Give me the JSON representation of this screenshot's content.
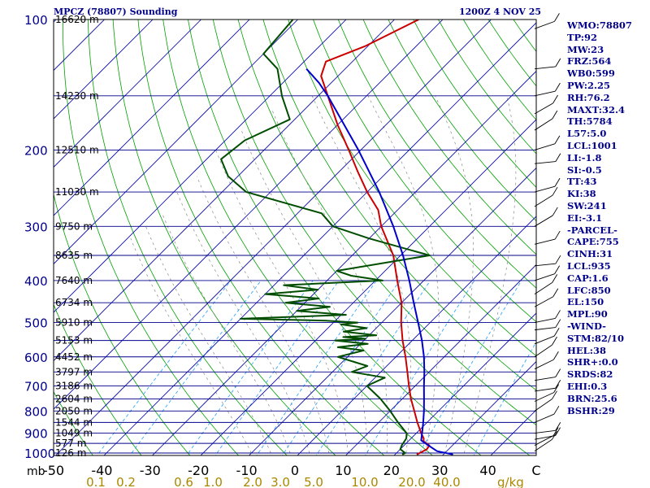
{
  "header": {
    "station": "MPCZ (78807) Sounding",
    "time": "1200Z  4 NOV 25"
  },
  "stats": [
    "WMO:78807",
    "TP:92",
    "MW:23",
    "FRZ:564",
    "WB0:599",
    "PW:2.25",
    "RH:76.2",
    "MAXT:32.4",
    "TH:5784",
    "L57:5.0",
    "LCL:1001",
    "LI:-1.8",
    "SI:-0.5",
    "TT:43",
    "KI:38",
    "SW:241",
    "EI:-3.1",
    "-PARCEL-",
    "CAPE:755",
    "CINH:31",
    "LCL:935",
    "CAP:1.6",
    "LFC:850",
    "EL:150",
    "MPL:90",
    "-WIND-",
    "STM:82/10",
    "HEL:38",
    "SHR+:0.0",
    "SRDS:82",
    "EHI:0.3",
    "BRN:25.6",
    "BSHR:29"
  ],
  "colors": {
    "background": "#ffffff",
    "isobar": "#00008b",
    "isotherm": "#0000aa",
    "dry_adiabat": "#00a000",
    "mixing_ratio": "#20a0ff",
    "temperature": "#cc0000",
    "dewpoint": "#004d00",
    "parcel": "#0000cc",
    "title_text": "#00008b",
    "mixing_label": "#aa8800",
    "text": "#000000"
  },
  "chart_data": {
    "type": "line",
    "title": "MPCZ (78807) Sounding",
    "subtitle": "1200Z  4 NOV 25",
    "y_axis": "pressure (mb)",
    "x_axis": "temperature (C)",
    "x_unit_label": "mb",
    "mixing_unit_label": "g/kg",
    "ylim": [
      1000,
      100
    ],
    "xlim": [
      -50,
      50
    ],
    "pressure_ticks": [
      100,
      200,
      300,
      400,
      500,
      600,
      700,
      800,
      900,
      1000
    ],
    "temp_ticks": [
      "-50",
      "-40",
      "-30",
      "-20",
      "-10",
      "0",
      "10",
      "20",
      "30",
      "40",
      "C"
    ],
    "mixing_ratio_labels": [
      "0.1",
      "0.2",
      "0.6",
      "1.0",
      "2.0",
      "3.0",
      "5.0",
      "10.0",
      "20.0",
      "40.0"
    ],
    "height_labels": [
      {
        "p": 100,
        "h": "16620 m"
      },
      {
        "p": 150,
        "h": "14230 m"
      },
      {
        "p": 200,
        "h": "12510 m"
      },
      {
        "p": 250,
        "h": "11030 m"
      },
      {
        "p": 300,
        "h": "9750 m"
      },
      {
        "p": 350,
        "h": "8635 m"
      },
      {
        "p": 400,
        "h": "7640 m"
      },
      {
        "p": 450,
        "h": "6734 m"
      },
      {
        "p": 500,
        "h": "5910 m"
      },
      {
        "p": 550,
        "h": "5153 m"
      },
      {
        "p": 600,
        "h": "4452 m"
      },
      {
        "p": 650,
        "h": "3797 m"
      },
      {
        "p": 700,
        "h": "3186 m"
      },
      {
        "p": 750,
        "h": "2604 m"
      },
      {
        "p": 800,
        "h": "2050 m"
      },
      {
        "p": 850,
        "h": "1544 m"
      },
      {
        "p": 900,
        "h": "1049 m"
      },
      {
        "p": 950,
        "h": "577 m"
      },
      {
        "p": 1000,
        "h": "126 m"
      }
    ],
    "series": [
      {
        "name": "Temperature",
        "unit": "C",
        "points": [
          [
            1008,
            24.5
          ],
          [
            1000,
            24.8
          ],
          [
            980,
            25.5
          ],
          [
            960,
            25.2
          ],
          [
            940,
            23.2
          ],
          [
            925,
            22.6
          ],
          [
            900,
            21.0
          ],
          [
            850,
            18.0
          ],
          [
            800,
            15.0
          ],
          [
            750,
            11.8
          ],
          [
            700,
            8.7
          ],
          [
            650,
            5.5
          ],
          [
            600,
            2.0
          ],
          [
            550,
            -2.0
          ],
          [
            500,
            -6.0
          ],
          [
            450,
            -10.0
          ],
          [
            400,
            -15.5
          ],
          [
            350,
            -21.5
          ],
          [
            300,
            -30.0
          ],
          [
            275,
            -34.0
          ],
          [
            250,
            -40.0
          ],
          [
            225,
            -46.0
          ],
          [
            200,
            -52.5
          ],
          [
            175,
            -60.0
          ],
          [
            150,
            -68.0
          ],
          [
            135,
            -73.5
          ],
          [
            125,
            -75.5
          ],
          [
            115,
            -70.5
          ],
          [
            100,
            -65.0
          ]
        ]
      },
      {
        "name": "Dewpoint",
        "unit": "C",
        "points": [
          [
            1008,
            21.5
          ],
          [
            1000,
            21.8
          ],
          [
            980,
            20.0
          ],
          [
            960,
            19.5
          ],
          [
            925,
            19.0
          ],
          [
            900,
            18.0
          ],
          [
            850,
            14.0
          ],
          [
            800,
            10.0
          ],
          [
            750,
            5.5
          ],
          [
            700,
            0.0
          ],
          [
            670,
            2.0
          ],
          [
            650,
            -6.0
          ],
          [
            630,
            -4.0
          ],
          [
            600,
            -12.0
          ],
          [
            580,
            -8.0
          ],
          [
            570,
            -14.0
          ],
          [
            560,
            -8.5
          ],
          [
            550,
            -16.0
          ],
          [
            545,
            -10.0
          ],
          [
            540,
            -15.0
          ],
          [
            535,
            -8.5
          ],
          [
            525,
            -16.0
          ],
          [
            515,
            -12.0
          ],
          [
            505,
            -18.0
          ],
          [
            500,
            -15.0
          ],
          [
            495,
            -22.0
          ],
          [
            490,
            -40.0
          ],
          [
            480,
            -19.0
          ],
          [
            470,
            -30.0
          ],
          [
            460,
            -24.0
          ],
          [
            450,
            -34.0
          ],
          [
            440,
            -28.0
          ],
          [
            430,
            -40.0
          ],
          [
            420,
            -30.0
          ],
          [
            410,
            -38.0
          ],
          [
            400,
            -18.5
          ],
          [
            390,
            -26.0
          ],
          [
            380,
            -30.0
          ],
          [
            350,
            -14.0
          ],
          [
            320,
            -30.0
          ],
          [
            300,
            -40.0
          ],
          [
            280,
            -45.0
          ],
          [
            250,
            -65.0
          ],
          [
            230,
            -72.0
          ],
          [
            210,
            -77.0
          ],
          [
            190,
            -76.0
          ],
          [
            170,
            -71.0
          ],
          [
            150,
            -77.5
          ],
          [
            130,
            -84.0
          ],
          [
            120,
            -90.0
          ],
          [
            100,
            -91.0
          ]
        ]
      },
      {
        "name": "Parcel",
        "unit": "C",
        "points": [
          [
            1008,
            32.0
          ],
          [
            990,
            28.0
          ],
          [
            960,
            25.0
          ],
          [
            935,
            22.5
          ],
          [
            900,
            21.2
          ],
          [
            850,
            19.2
          ],
          [
            800,
            17.0
          ],
          [
            750,
            14.5
          ],
          [
            700,
            11.8
          ],
          [
            650,
            9.0
          ],
          [
            600,
            5.8
          ],
          [
            550,
            2.0
          ],
          [
            500,
            -2.5
          ],
          [
            450,
            -7.5
          ],
          [
            400,
            -13.0
          ],
          [
            350,
            -19.5
          ],
          [
            300,
            -27.5
          ],
          [
            250,
            -37.5
          ],
          [
            200,
            -50.5
          ],
          [
            150,
            -68.0
          ],
          [
            140,
            -72.5
          ],
          [
            130,
            -78.0
          ]
        ]
      }
    ],
    "wind_barbs": "shown along right edge, light winds"
  }
}
